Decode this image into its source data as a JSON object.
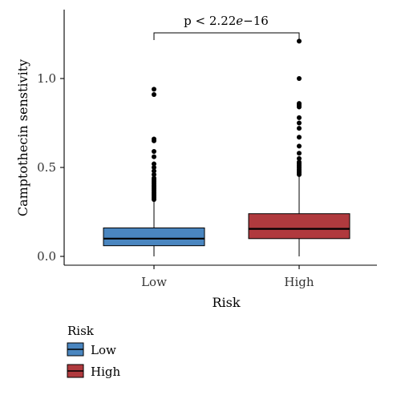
{
  "chart_data": {
    "type": "box",
    "xlabel": "Risk",
    "ylabel": "Camptothecin senstivity",
    "ylim": [
      -0.05,
      1.27
    ],
    "yticks": [
      0.0,
      0.5,
      1.0
    ],
    "ytick_labels": [
      "0.0",
      "0.5",
      "1.0"
    ],
    "categories": [
      "Low",
      "High"
    ],
    "series": [
      {
        "name": "Low",
        "color": "#4a86c0",
        "q1": 0.06,
        "median": 0.1,
        "q3": 0.16,
        "whisker_low": 0.0,
        "whisker_high": 0.31,
        "outliers": [
          0.32,
          0.33,
          0.34,
          0.35,
          0.36,
          0.37,
          0.38,
          0.39,
          0.4,
          0.41,
          0.42,
          0.43,
          0.44,
          0.46,
          0.48,
          0.5,
          0.52,
          0.56,
          0.59,
          0.65,
          0.66,
          0.91,
          0.94
        ]
      },
      {
        "name": "High",
        "color": "#b03a3e",
        "q1": 0.1,
        "median": 0.155,
        "q3": 0.24,
        "whisker_low": 0.0,
        "whisker_high": 0.45,
        "outliers": [
          0.46,
          0.47,
          0.48,
          0.49,
          0.5,
          0.51,
          0.52,
          0.53,
          0.55,
          0.58,
          0.62,
          0.67,
          0.72,
          0.75,
          0.78,
          0.84,
          0.85,
          0.86,
          1.0,
          1.21
        ]
      }
    ],
    "annotation": "p < 2.22e−16",
    "legend": {
      "title": "Risk",
      "position": "bottom-left",
      "items": [
        "Low",
        "High"
      ]
    }
  }
}
